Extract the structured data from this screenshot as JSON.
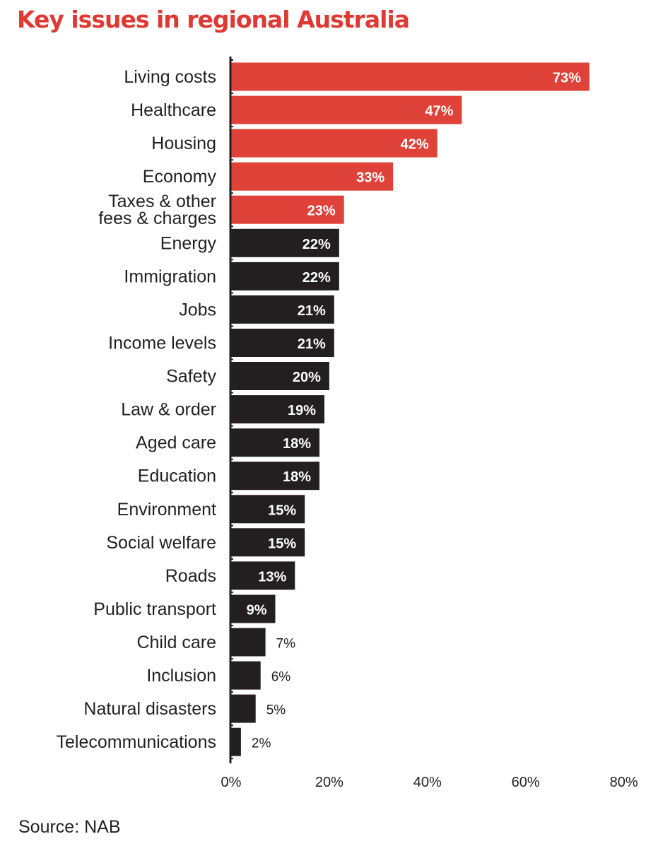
{
  "title": "Key issues in regional Australia",
  "source": "Source: NAB",
  "colors": {
    "highlight": "#de4239",
    "dark": "#231f20",
    "title": "#de3a33",
    "text": "#231f20",
    "label_on_bar": "#ffffff"
  },
  "chart_data": {
    "type": "bar",
    "orientation": "horizontal",
    "title": "Key issues in regional Australia",
    "categories": [
      "Living costs",
      "Healthcare",
      "Housing",
      "Economy",
      "Taxes & other fees & charges",
      "Energy",
      "Immigration",
      "Jobs",
      "Income levels",
      "Safety",
      "Law & order",
      "Aged care",
      "Education",
      "Environment",
      "Social welfare",
      "Roads",
      "Public transport",
      "Child care",
      "Inclusion",
      "Natural disasters",
      "Telecommunications"
    ],
    "category_lines": [
      [
        "Living costs"
      ],
      [
        "Healthcare"
      ],
      [
        "Housing"
      ],
      [
        "Economy"
      ],
      [
        "Taxes & other",
        "fees & charges"
      ],
      [
        "Energy"
      ],
      [
        "Immigration"
      ],
      [
        "Jobs"
      ],
      [
        "Income levels"
      ],
      [
        "Safety"
      ],
      [
        "Law & order"
      ],
      [
        "Aged care"
      ],
      [
        "Education"
      ],
      [
        "Environment"
      ],
      [
        "Social welfare"
      ],
      [
        "Roads"
      ],
      [
        "Public transport"
      ],
      [
        "Child care"
      ],
      [
        "Inclusion"
      ],
      [
        "Natural disasters"
      ],
      [
        "Telecommunications"
      ]
    ],
    "values": [
      73,
      47,
      42,
      33,
      23,
      22,
      22,
      21,
      21,
      20,
      19,
      18,
      18,
      15,
      15,
      13,
      9,
      7,
      6,
      5,
      2
    ],
    "labels": [
      "73%",
      "47%",
      "42%",
      "33%",
      "23%",
      "22%",
      "22%",
      "21%",
      "21%",
      "20%",
      "19%",
      "18%",
      "18%",
      "15%",
      "15%",
      "13%",
      "9%",
      "7%",
      "6%",
      "5%",
      "2%"
    ],
    "highlighted_top": 5,
    "xlim": [
      0,
      80
    ],
    "xticks": [
      0,
      20,
      40,
      60,
      80
    ],
    "xtick_labels": [
      "0%",
      "20%",
      "40%",
      "60%",
      "80%"
    ],
    "xlabel": "",
    "ylabel": "",
    "grid": false,
    "legend": "none"
  }
}
